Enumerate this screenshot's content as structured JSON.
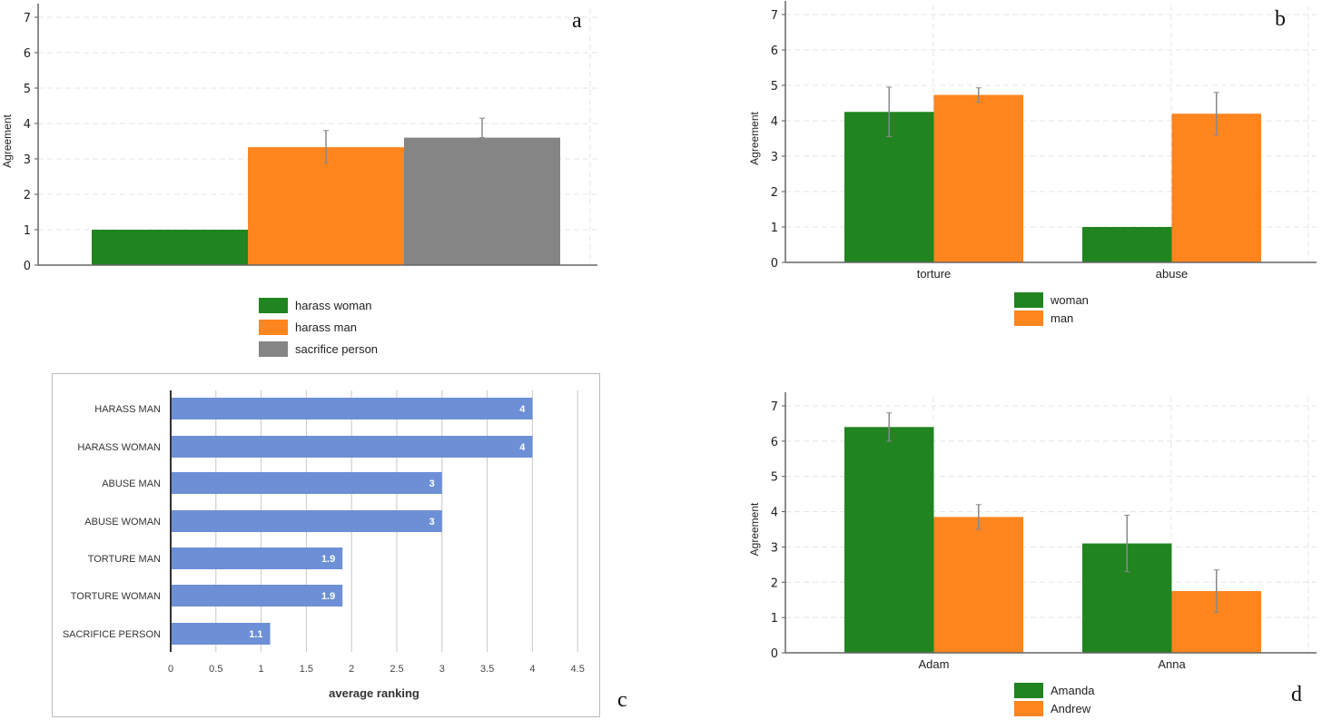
{
  "colors": {
    "green": "#208420",
    "orange": "#ff851e",
    "gray": "#858585",
    "blue": "#6d8fd6",
    "error": "#888888"
  },
  "chart_data": [
    {
      "id": "a",
      "panel_label": "a",
      "type": "bar",
      "title": "",
      "xlabel": "",
      "ylabel": "Agreement",
      "ylim": [
        0,
        7
      ],
      "yticks": [
        "0",
        "1",
        "2",
        "3",
        "4",
        "5",
        "6",
        "7"
      ],
      "categories": [
        ""
      ],
      "series": [
        {
          "name": "harass woman",
          "color": "green",
          "values": [
            1.0
          ],
          "error": [
            null
          ]
        },
        {
          "name": "harass man",
          "color": "orange",
          "values": [
            3.33
          ],
          "error": [
            [
              2.88,
              3.8
            ]
          ]
        },
        {
          "name": "sacrifice person",
          "color": "gray",
          "values": [
            3.6
          ],
          "error": [
            [
              3.6,
              4.15
            ]
          ]
        }
      ],
      "grid": true,
      "legend": "bottom"
    },
    {
      "id": "b",
      "panel_label": "b",
      "type": "bar",
      "title": "",
      "xlabel": "",
      "ylabel": "Agreement",
      "ylim": [
        0,
        7
      ],
      "yticks": [
        "0",
        "1",
        "2",
        "3",
        "4",
        "5",
        "6",
        "7"
      ],
      "categories": [
        "torture",
        "abuse"
      ],
      "series": [
        {
          "name": "woman",
          "color": "green",
          "values": [
            4.25,
            1.0
          ],
          "error": [
            [
              3.55,
              4.95
            ],
            null
          ]
        },
        {
          "name": "man",
          "color": "orange",
          "values": [
            4.73,
            4.2
          ],
          "error": [
            [
              4.53,
              4.93
            ],
            [
              3.6,
              4.8
            ]
          ]
        }
      ],
      "grid": true,
      "legend": "bottom"
    },
    {
      "id": "c",
      "panel_label": "c",
      "type": "bar",
      "orientation": "horizontal",
      "title": "",
      "xlabel": "average ranking",
      "ylabel": "",
      "xlim": [
        0,
        4.5
      ],
      "xticks": [
        "0",
        "0.5",
        "1",
        "1.5",
        "2",
        "2.5",
        "3",
        "3.5",
        "4",
        "4.5"
      ],
      "categories": [
        "HARASS MAN",
        "HARASS WOMAN",
        "ABUSE MAN",
        "ABUSE WOMAN",
        "TORTURE MAN",
        "TORTURE WOMAN",
        "SACRIFICE PERSON"
      ],
      "values": [
        4,
        4,
        3,
        3,
        1.9,
        1.9,
        1.1
      ],
      "labels": [
        "4",
        "4",
        "3",
        "3",
        "1.9",
        "1.9",
        "1.1"
      ],
      "grid": true
    },
    {
      "id": "d",
      "panel_label": "d",
      "type": "bar",
      "title": "",
      "xlabel": "",
      "ylabel": "Agreement",
      "ylim": [
        0,
        7
      ],
      "yticks": [
        "0",
        "1",
        "2",
        "3",
        "4",
        "5",
        "6",
        "7"
      ],
      "categories": [
        "Adam",
        "Anna"
      ],
      "series": [
        {
          "name": "Amanda",
          "color": "green",
          "values": [
            6.4,
            3.1
          ],
          "error": [
            [
              6.0,
              6.8
            ],
            [
              2.3,
              3.9
            ]
          ]
        },
        {
          "name": "Andrew",
          "color": "orange",
          "values": [
            3.85,
            1.75
          ],
          "error": [
            [
              3.5,
              4.2
            ],
            [
              1.15,
              2.35
            ]
          ]
        }
      ],
      "grid": true,
      "legend": "bottom"
    }
  ]
}
